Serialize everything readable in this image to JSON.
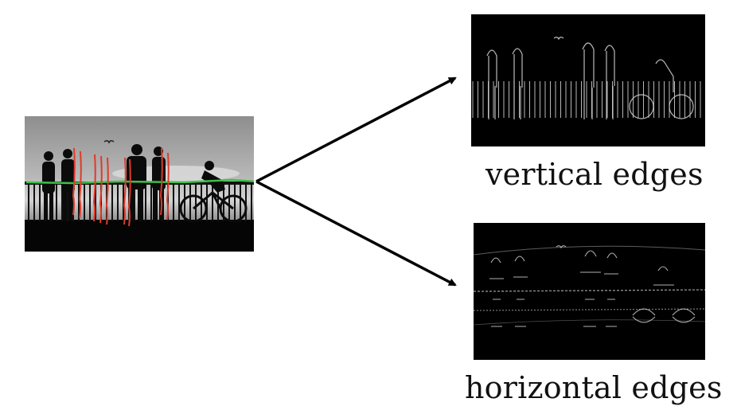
{
  "captions": {
    "vertical": "vertical edges",
    "horizontal": "horizontal edges"
  },
  "colors": {
    "vertical_edge_marks": "#e03a2a",
    "horizontal_edge_marks": "#3fbf4a",
    "arrow": "#000000"
  }
}
